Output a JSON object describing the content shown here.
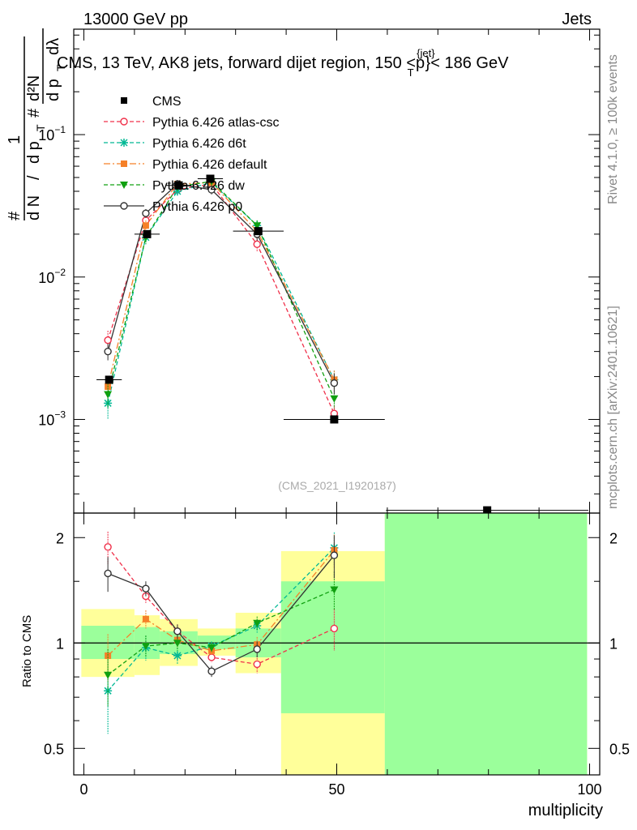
{
  "header": {
    "left": "13000 GeV pp",
    "right": "Jets",
    "title": "CMS, 13 TeV, AK8 jets, forward dijet region, 150 <p",
    "title_sup": "{jet}",
    "title_sub": "T",
    "title_tail": "}< 186 GeV",
    "watermark": "(CMS_2021_I1920187)",
    "side_top": "Rivet 4.1.0, ≥ 100k events",
    "side_bottom": "mcplots.cern.ch [arXiv:2401.10621]"
  },
  "ylabel_main": {
    "one": "1",
    "num": "#",
    "dN": "d N",
    "slash": "/",
    "dpT": "d p",
    "sub": "T",
    "num2": "#",
    "d2N": "d²N",
    "dpTdl": "d p",
    "sub2": "T",
    "dl": "dλ"
  },
  "colors": {
    "cms": "#000000",
    "atlas_csc": "#f0304a",
    "d6t": "#00b894",
    "default": "#f58028",
    "dw": "#10a010",
    "p0": "#333333",
    "band_yellow": "#ffff9a",
    "band_green": "#9bff9b"
  },
  "chart_data": [
    {
      "type": "scatter",
      "name": "main",
      "yscale": "log",
      "xlim": [
        -2,
        102
      ],
      "ylim": [
        0.00022,
        0.55
      ],
      "yticks": [
        {
          "v": 0.1,
          "b": "10",
          "e": "−1"
        },
        {
          "v": 0.01,
          "b": "10",
          "e": "−2"
        },
        {
          "v": 0.001,
          "b": "10",
          "e": "−3"
        }
      ],
      "data": {
        "x": [
          5,
          12.5,
          18.75,
          25,
          34.5,
          49.5,
          79.75
        ],
        "xerr": [
          2.5,
          2.5,
          2.5,
          2.5,
          5,
          10,
          20
        ],
        "y": [
          0.0019,
          0.02,
          0.044,
          0.049,
          0.021,
          0.001,
          0.00023
        ]
      },
      "legend": [
        "CMS",
        "Pythia 6.426 atlas-csc",
        "Pythia 6.426 d6t",
        "Pythia 6.426 default",
        "Pythia 6.426 dw",
        "Pythia 6.426 p0"
      ],
      "series": [
        {
          "name": "Pythia 6.426 atlas-csc",
          "key": "atlas_csc",
          "marker": "circle-open",
          "dash": "5,3",
          "x": [
            4.75,
            12.25,
            18.5,
            25.25,
            34.25,
            49.5
          ],
          "y": [
            0.0036,
            0.025,
            0.041,
            0.045,
            0.017,
            0.0011
          ],
          "err": [
            0.0006,
            0.003,
            0.003,
            0.003,
            0.002,
            0.00015
          ]
        },
        {
          "name": "Pythia 6.426 d6t",
          "key": "d6t",
          "marker": "star",
          "dash": "5,3",
          "x": [
            4.75,
            12.25,
            18.5,
            25.25,
            34.25,
            49.5
          ],
          "y": [
            0.0013,
            0.019,
            0.04,
            0.046,
            0.023,
            0.0019
          ],
          "err": [
            0.0003,
            0.002,
            0.003,
            0.003,
            0.002,
            0.0003
          ]
        },
        {
          "name": "Pythia 6.426 default",
          "key": "default",
          "marker": "square",
          "dash": "8,3,2,3",
          "x": [
            4.75,
            12.25,
            18.5,
            25.25,
            34.25,
            49.5
          ],
          "y": [
            0.0017,
            0.023,
            0.045,
            0.046,
            0.021,
            0.0019
          ],
          "err": [
            0.0003,
            0.002,
            0.003,
            0.003,
            0.002,
            0.0003
          ]
        },
        {
          "name": "Pythia 6.426 dw",
          "key": "dw",
          "marker": "tri-down",
          "dash": "5,3",
          "x": [
            4.75,
            12.25,
            18.5,
            25.25,
            34.25,
            49.5
          ],
          "y": [
            0.0015,
            0.019,
            0.043,
            0.047,
            0.023,
            0.0014
          ],
          "err": [
            0.0003,
            0.002,
            0.003,
            0.003,
            0.002,
            0.0002
          ]
        },
        {
          "name": "Pythia 6.426 p0",
          "key": "p0",
          "marker": "circle-open",
          "dash": "",
          "x": [
            4.75,
            12.25,
            18.5,
            25.25,
            34.25,
            49.5
          ],
          "y": [
            0.003,
            0.028,
            0.045,
            0.041,
            0.02,
            0.0018
          ],
          "err": [
            0.0004,
            0.002,
            0.003,
            0.003,
            0.002,
            0.0003
          ]
        }
      ]
    },
    {
      "type": "scatter",
      "name": "ratio",
      "ylabel": "Ratio to CMS",
      "xlabel": "multiplicity",
      "yscale": "log",
      "xlim": [
        -2,
        102
      ],
      "ylim": [
        0.42,
        2.35
      ],
      "xticks": [
        0,
        50,
        100
      ],
      "yticks": [
        0.5,
        1,
        2
      ],
      "bands": [
        {
          "x0": -0.5,
          "x1": 10,
          "yel": [
            0.8,
            1.25
          ],
          "grn": [
            0.9,
            1.12
          ]
        },
        {
          "x0": 10,
          "x1": 15,
          "yel": [
            0.81,
            1.2
          ],
          "grn": [
            0.9,
            1.11
          ]
        },
        {
          "x0": 15,
          "x1": 22.5,
          "yel": [
            0.86,
            1.17
          ],
          "grn": [
            0.93,
            1.08
          ]
        },
        {
          "x0": 22.5,
          "x1": 30,
          "yel": [
            0.92,
            1.1
          ],
          "grn": [
            0.96,
            1.05
          ]
        },
        {
          "x0": 30,
          "x1": 39,
          "yel": [
            0.82,
            1.22
          ],
          "grn": [
            0.91,
            1.1
          ]
        },
        {
          "x0": 39,
          "x1": 59.5,
          "yel": [
            0.41,
            1.83
          ],
          "grn": [
            0.63,
            1.5
          ]
        },
        {
          "x0": 59.5,
          "x1": 99.5,
          "yel": [
            0.41,
            2.35
          ],
          "grn": [
            0.41,
            2.35
          ]
        }
      ],
      "series": [
        {
          "name": "Pythia 6.426 atlas-csc",
          "key": "atlas_csc",
          "marker": "circle-open",
          "dash": "5,3",
          "x": [
            4.75,
            12.25,
            18.5,
            25.25,
            34.25,
            49.5
          ],
          "y": [
            1.88,
            1.36,
            1.08,
            0.91,
            0.87,
            1.1
          ],
          "err": [
            0.2,
            0.06,
            0.05,
            0.03,
            0.05,
            0.15
          ]
        },
        {
          "name": "Pythia 6.426 d6t",
          "key": "d6t",
          "marker": "star",
          "dash": "5,3",
          "x": [
            4.75,
            12.25,
            18.5,
            25.25,
            34.25,
            49.5
          ],
          "y": [
            0.73,
            0.97,
            0.92,
            0.98,
            1.12,
            1.87
          ],
          "err": [
            0.18,
            0.08,
            0.05,
            0.03,
            0.05,
            0.2
          ]
        },
        {
          "name": "Pythia 6.426 default",
          "key": "default",
          "marker": "square",
          "dash": "8,3,2,3",
          "x": [
            4.75,
            12.25,
            18.5,
            25.25,
            34.25,
            49.5
          ],
          "y": [
            0.92,
            1.17,
            1.02,
            0.95,
            0.99,
            1.84
          ],
          "err": [
            0.14,
            0.07,
            0.05,
            0.03,
            0.05,
            0.2
          ]
        },
        {
          "name": "Pythia 6.426 dw",
          "key": "dw",
          "marker": "tri-down",
          "dash": "5,3",
          "x": [
            4.75,
            12.25,
            18.5,
            25.25,
            34.25,
            49.5
          ],
          "y": [
            0.81,
            0.98,
            1.0,
            0.97,
            1.14,
            1.42
          ],
          "err": [
            0.15,
            0.07,
            0.05,
            0.03,
            0.05,
            0.18
          ]
        },
        {
          "name": "Pythia 6.426 p0",
          "key": "p0",
          "marker": "circle-open",
          "dash": "",
          "x": [
            4.75,
            12.25,
            18.5,
            25.25,
            34.25,
            49.5
          ],
          "y": [
            1.58,
            1.43,
            1.08,
            0.83,
            0.96,
            1.78
          ],
          "err": [
            0.18,
            0.07,
            0.05,
            0.03,
            0.05,
            0.25
          ]
        }
      ]
    }
  ]
}
